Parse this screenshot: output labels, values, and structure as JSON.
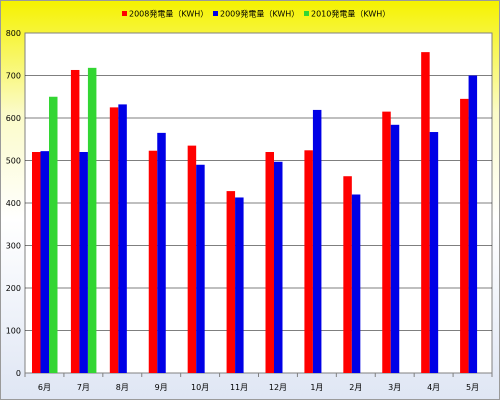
{
  "chart_data": {
    "type": "bar",
    "categories": [
      "6月",
      "7月",
      "8月",
      "9月",
      "10月",
      "11月",
      "12月",
      "1月",
      "2月",
      "3月",
      "4月",
      "5月"
    ],
    "series": [
      {
        "name": "2008発電量（KWH）",
        "color": "#ff0000",
        "values": [
          520,
          713,
          625,
          523,
          535,
          428,
          520,
          524,
          463,
          615,
          755,
          645
        ]
      },
      {
        "name": "2009発電量（KWH）",
        "color": "#0000e6",
        "values": [
          522,
          520,
          632,
          565,
          490,
          413,
          497,
          619,
          420,
          584,
          567,
          700
        ]
      },
      {
        "name": "2010発電量（KWH）",
        "color": "#33d633",
        "values": [
          650,
          718,
          null,
          null,
          null,
          null,
          null,
          null,
          null,
          null,
          null,
          null
        ]
      }
    ],
    "y_ticks": [
      "0",
      "100",
      "200",
      "300",
      "400",
      "500",
      "600",
      "700",
      "800"
    ],
    "ylim": [
      0,
      800
    ],
    "grid": true,
    "legend_position": "top"
  }
}
